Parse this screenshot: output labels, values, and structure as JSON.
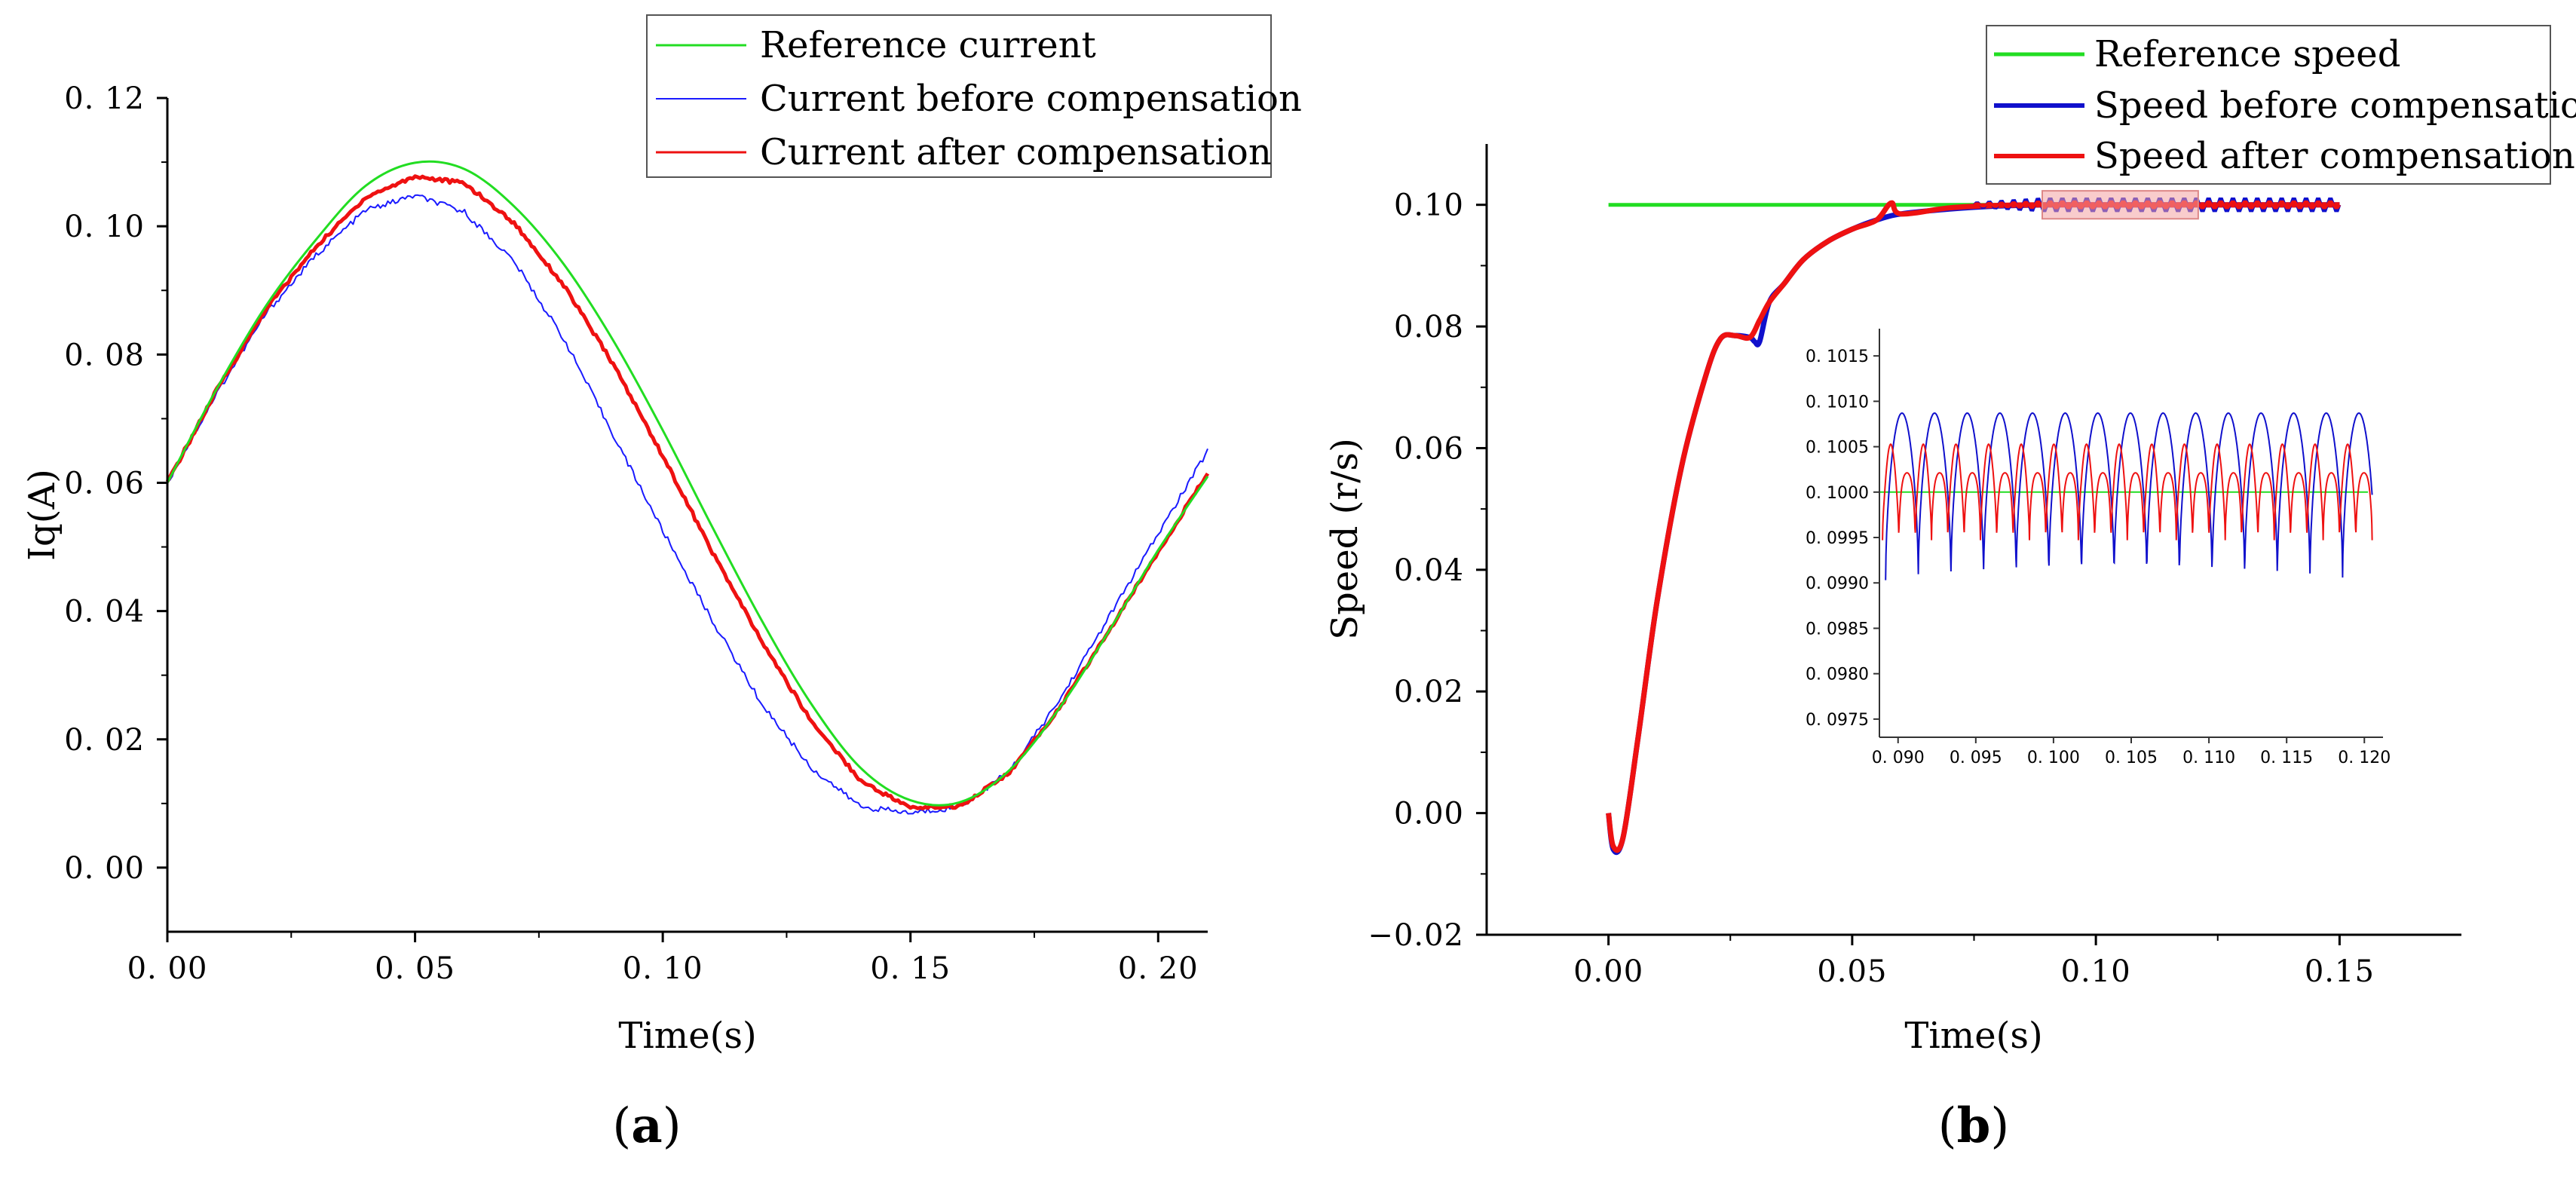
{
  "chart_data": [
    {
      "type": "line",
      "panel_label": "(a)",
      "panel_letter": "a",
      "xlabel": "Time(s)",
      "ylabel": "Iq(A)",
      "xlim": [
        0,
        0.21
      ],
      "ylim": [
        -0.01,
        0.12
      ],
      "xticks": [
        0.0,
        0.05,
        0.1,
        0.15,
        0.2
      ],
      "xtick_labels": [
        "0. 00",
        "0. 05",
        "0. 10",
        "0. 15",
        "0. 20"
      ],
      "yticks": [
        0.0,
        0.02,
        0.04,
        0.06,
        0.08,
        0.1,
        0.12
      ],
      "ytick_labels": [
        "0. 00",
        "0. 02",
        "0. 04",
        "0. 06",
        "0. 08",
        "0. 10",
        "0. 12"
      ],
      "legend_position": "top-right",
      "series": [
        {
          "name": "Reference current",
          "color": "#22dd22",
          "x": [
            0.0,
            0.01,
            0.02,
            0.03,
            0.04,
            0.05,
            0.06,
            0.07,
            0.08,
            0.09,
            0.1,
            0.11,
            0.12,
            0.13,
            0.14,
            0.15,
            0.16,
            0.17,
            0.18,
            0.19,
            0.2,
            0.21
          ],
          "y": [
            0.06,
            0.0747,
            0.0877,
            0.0979,
            0.1063,
            0.1099,
            0.1089,
            0.1031,
            0.0941,
            0.0822,
            0.0682,
            0.0531,
            0.0385,
            0.0255,
            0.0155,
            0.0105,
            0.0102,
            0.0152,
            0.0248,
            0.0368,
            0.0495,
            0.061
          ]
        },
        {
          "name": "Current before compensation",
          "color": "#1a1aff",
          "x": [
            0.0,
            0.01,
            0.02,
            0.03,
            0.04,
            0.05,
            0.06,
            0.07,
            0.08,
            0.09,
            0.1,
            0.11,
            0.12,
            0.13,
            0.14,
            0.15,
            0.16,
            0.17,
            0.18,
            0.19,
            0.2,
            0.21
          ],
          "y": [
            0.06,
            0.074,
            0.0865,
            0.0955,
            0.1025,
            0.1048,
            0.1022,
            0.0945,
            0.0825,
            0.0675,
            0.0525,
            0.0385,
            0.0255,
            0.0155,
            0.0095,
            0.0085,
            0.0095,
            0.015,
            0.026,
            0.039,
            0.052,
            0.065
          ]
        },
        {
          "name": "Current after compensation",
          "color": "#ee1111",
          "x": [
            0.0,
            0.01,
            0.02,
            0.03,
            0.04,
            0.05,
            0.06,
            0.07,
            0.08,
            0.09,
            0.1,
            0.11,
            0.12,
            0.13,
            0.14,
            0.15,
            0.16,
            0.17,
            0.18,
            0.19,
            0.2,
            0.21
          ],
          "y": [
            0.06,
            0.0745,
            0.0872,
            0.0968,
            0.1045,
            0.1078,
            0.1067,
            0.1005,
            0.0908,
            0.0785,
            0.0642,
            0.0492,
            0.0352,
            0.0228,
            0.0135,
            0.0093,
            0.0096,
            0.0148,
            0.0248,
            0.0368,
            0.0493,
            0.0615
          ]
        }
      ]
    },
    {
      "type": "line",
      "panel_label": "(b)",
      "panel_letter": "b",
      "xlabel": "Time(s)",
      "ylabel": "Speed (r/s)",
      "xlim": [
        -0.025,
        0.175
      ],
      "ylim": [
        -0.02,
        0.11
      ],
      "xticks": [
        0.0,
        0.05,
        0.1,
        0.15
      ],
      "xtick_labels": [
        "0.00",
        "0.05",
        "0.10",
        "0.15"
      ],
      "yticks": [
        -0.02,
        0.0,
        0.02,
        0.04,
        0.06,
        0.08,
        0.1
      ],
      "ytick_labels": [
        "−0.02",
        "0.00",
        "0.02",
        "0.04",
        "0.06",
        "0.08",
        "0.10"
      ],
      "legend_position": "top-right",
      "series": [
        {
          "name": "Reference speed",
          "color": "#22dd22",
          "x": [
            0.0,
            0.15
          ],
          "y": [
            0.1,
            0.1
          ]
        },
        {
          "name": "Speed before compensation",
          "color": "#1010cc",
          "x": [
            0.0,
            0.001,
            0.003,
            0.006,
            0.01,
            0.015,
            0.02,
            0.023,
            0.026,
            0.029,
            0.03,
            0.031,
            0.033,
            0.036,
            0.04,
            0.045,
            0.05,
            0.055,
            0.06,
            0.07,
            0.08,
            0.09,
            0.1,
            0.11,
            0.12,
            0.13,
            0.14,
            0.15
          ],
          "y": [
            0.0,
            -0.006,
            -0.004,
            0.012,
            0.035,
            0.057,
            0.072,
            0.078,
            0.0785,
            0.0782,
            0.0775,
            0.0775,
            0.084,
            0.087,
            0.091,
            0.094,
            0.096,
            0.0975,
            0.0985,
            0.0993,
            0.0998,
            0.1,
            0.1,
            0.1,
            0.1,
            0.1,
            0.1,
            0.1
          ]
        },
        {
          "name": "Speed after compensation",
          "color": "#ee1111",
          "x": [
            0.0,
            0.001,
            0.003,
            0.006,
            0.01,
            0.015,
            0.02,
            0.023,
            0.026,
            0.029,
            0.031,
            0.033,
            0.036,
            0.04,
            0.045,
            0.05,
            0.055,
            0.058,
            0.06,
            0.07,
            0.08,
            0.09,
            0.1,
            0.11,
            0.12,
            0.13,
            0.14,
            0.15
          ],
          "y": [
            0.0,
            -0.0055,
            -0.004,
            0.012,
            0.035,
            0.057,
            0.072,
            0.078,
            0.0785,
            0.0782,
            0.081,
            0.084,
            0.087,
            0.091,
            0.094,
            0.096,
            0.0975,
            0.1003,
            0.0985,
            0.0995,
            0.0999,
            0.1,
            0.1,
            0.1,
            0.1,
            0.1,
            0.1,
            0.1
          ]
        }
      ],
      "highlight_region": {
        "x": [
          0.089,
          0.121
        ],
        "y": [
          0.0977,
          0.1023
        ]
      },
      "inset": {
        "xlim": [
          0.0888,
          0.1212
        ],
        "ylim": [
          0.0973,
          0.1018
        ],
        "xticks": [
          0.09,
          0.095,
          0.1,
          0.105,
          0.11,
          0.115,
          0.12
        ],
        "xtick_labels": [
          "0. 090",
          "0. 095",
          "0. 100",
          "0. 105",
          "0. 110",
          "0. 115",
          "0. 120"
        ],
        "yticks": [
          0.0975,
          0.098,
          0.0985,
          0.099,
          0.0995,
          0.1,
          0.1005,
          0.101,
          0.1015
        ],
        "ytick_labels": [
          "0. 0975",
          "0. 0980",
          "0. 0985",
          "0. 0990",
          "0. 0995",
          "0. 1000",
          "0. 1005",
          "0. 1010",
          "0. 1015"
        ],
        "reference_level": 0.1,
        "blue_oscillation": {
          "center": 0.09995,
          "amplitude": 0.00092,
          "period": 0.0021,
          "start": 0.0892
        },
        "red_oscillation": {
          "center": 0.09992,
          "amplitude": 0.00045,
          "period": 0.00105,
          "start": 0.089
        }
      }
    }
  ]
}
